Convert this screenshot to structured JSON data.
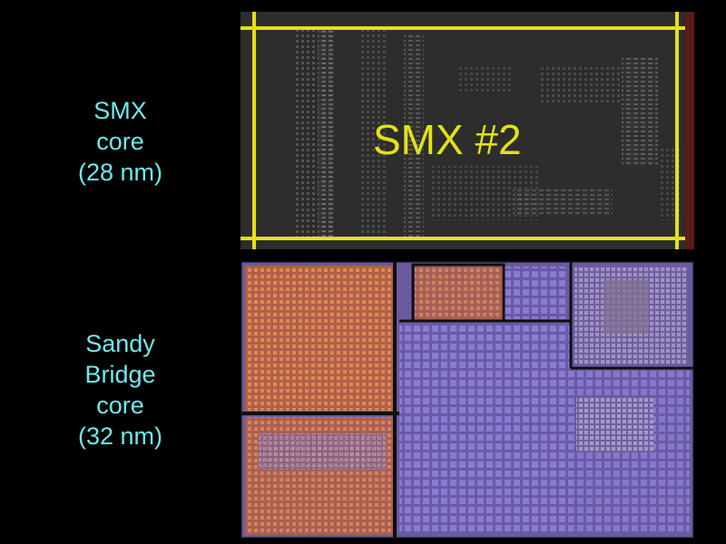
{
  "slide": {
    "smx": {
      "caption_lines": [
        "SMX",
        "core",
        "(28 nm)"
      ],
      "die_label": "SMX #2",
      "frame_color": "#e4e01a"
    },
    "sandy_bridge": {
      "caption_lines": [
        "Sandy",
        "Bridge",
        "core",
        "(32 nm)"
      ]
    },
    "caption_color": "#6fe8ec",
    "background_color": "#000000"
  }
}
